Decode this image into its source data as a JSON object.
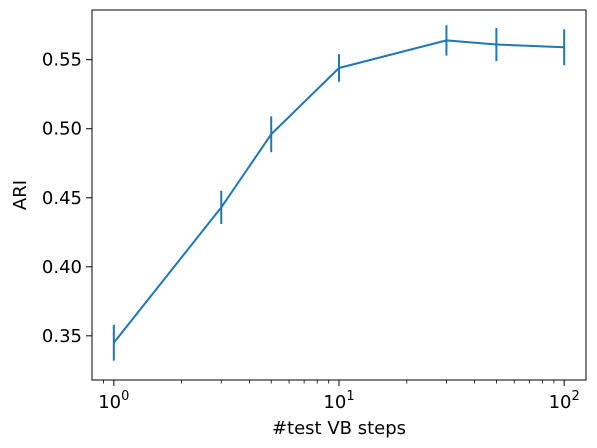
{
  "chart_data": {
    "type": "line",
    "title": "",
    "xlabel": "#test VB steps",
    "ylabel": "ARI",
    "xscale": "log",
    "xlim": [
      0.8,
      125
    ],
    "ylim": [
      0.318,
      0.586
    ],
    "x_ticks": [
      {
        "value": 1,
        "base": "10",
        "exp": "0"
      },
      {
        "value": 10,
        "base": "10",
        "exp": "1"
      },
      {
        "value": 100,
        "base": "10",
        "exp": "2"
      }
    ],
    "y_ticks": [
      {
        "value": 0.35,
        "label": "0.35"
      },
      {
        "value": 0.4,
        "label": "0.40"
      },
      {
        "value": 0.45,
        "label": "0.45"
      },
      {
        "value": 0.5,
        "label": "0.50"
      },
      {
        "value": 0.55,
        "label": "0.55"
      }
    ],
    "grid": false,
    "legend": "none",
    "series": [
      {
        "color": "#1f77b4",
        "x": [
          1,
          3,
          5,
          10,
          30,
          50,
          100
        ],
        "y": [
          0.345,
          0.443,
          0.496,
          0.544,
          0.564,
          0.561,
          0.559
        ],
        "yerr": [
          0.013,
          0.012,
          0.013,
          0.01,
          0.011,
          0.012,
          0.013
        ]
      }
    ]
  }
}
